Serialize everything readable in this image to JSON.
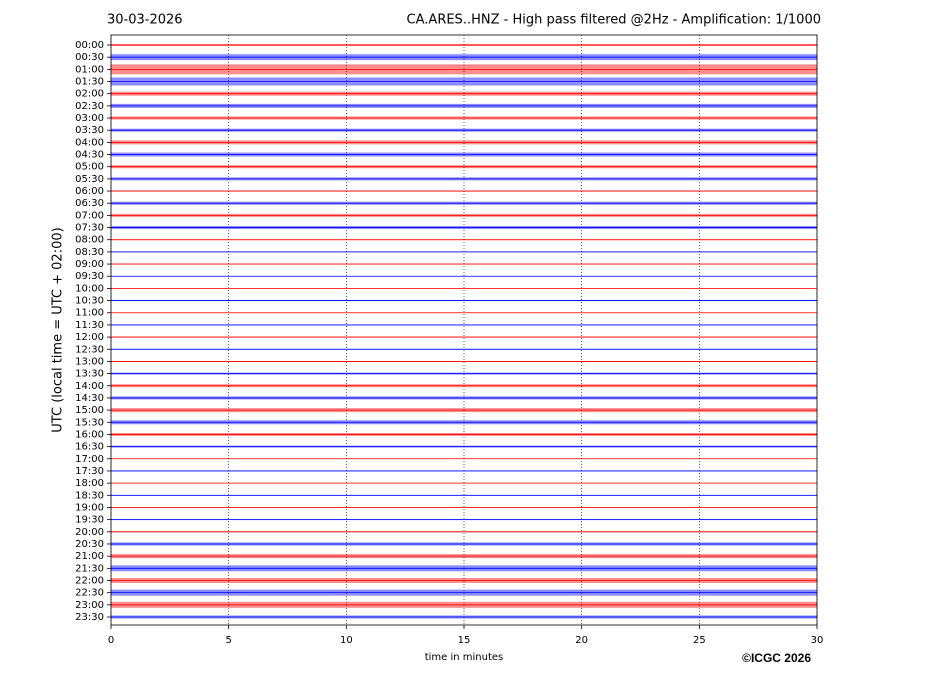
{
  "chart_data": {
    "type": "helicorder",
    "title": "CA.ARES..HNZ - High pass filtered @2Hz - Amplification: 1/1000",
    "subtitle": "30-03-2026",
    "xlabel": "time in minutes",
    "ylabel": "UTC (local time = UTC + 02:00)",
    "credit": "©ICGC 2026",
    "xlim": [
      0,
      30
    ],
    "xticks": [
      0,
      5,
      10,
      15,
      20,
      25,
      30
    ],
    "grid": true,
    "colors": [
      "#ff0000",
      "#0000ff"
    ],
    "categories": [
      "00:00",
      "00:30",
      "01:00",
      "01:30",
      "02:00",
      "02:30",
      "03:00",
      "03:30",
      "04:00",
      "04:30",
      "05:00",
      "05:30",
      "06:00",
      "06:30",
      "07:00",
      "07:30",
      "08:00",
      "08:30",
      "09:00",
      "09:30",
      "10:00",
      "10:30",
      "11:00",
      "11:30",
      "12:00",
      "12:30",
      "13:00",
      "13:30",
      "14:00",
      "14:30",
      "15:00",
      "15:30",
      "16:00",
      "16:30",
      "17:00",
      "17:30",
      "18:00",
      "18:30",
      "19:00",
      "19:30",
      "20:00",
      "20:30",
      "21:00",
      "21:30",
      "22:00",
      "22:30",
      "23:00",
      "23:30"
    ],
    "values": [
      1,
      3,
      5,
      4,
      2,
      2,
      1.5,
      1.5,
      2,
      2,
      1.5,
      1.5,
      0.5,
      1.5,
      1.5,
      1.5,
      0.5,
      0.5,
      0.3,
      0.3,
      0.3,
      0.5,
      0.3,
      0.3,
      0.5,
      0.5,
      0.5,
      1,
      1.5,
      1.5,
      2,
      2,
      1.5,
      1,
      0.3,
      0.3,
      0.3,
      0.3,
      0.5,
      0.5,
      0.5,
      1.5,
      2,
      3,
      2.5,
      3,
      3,
      1.5
    ]
  }
}
